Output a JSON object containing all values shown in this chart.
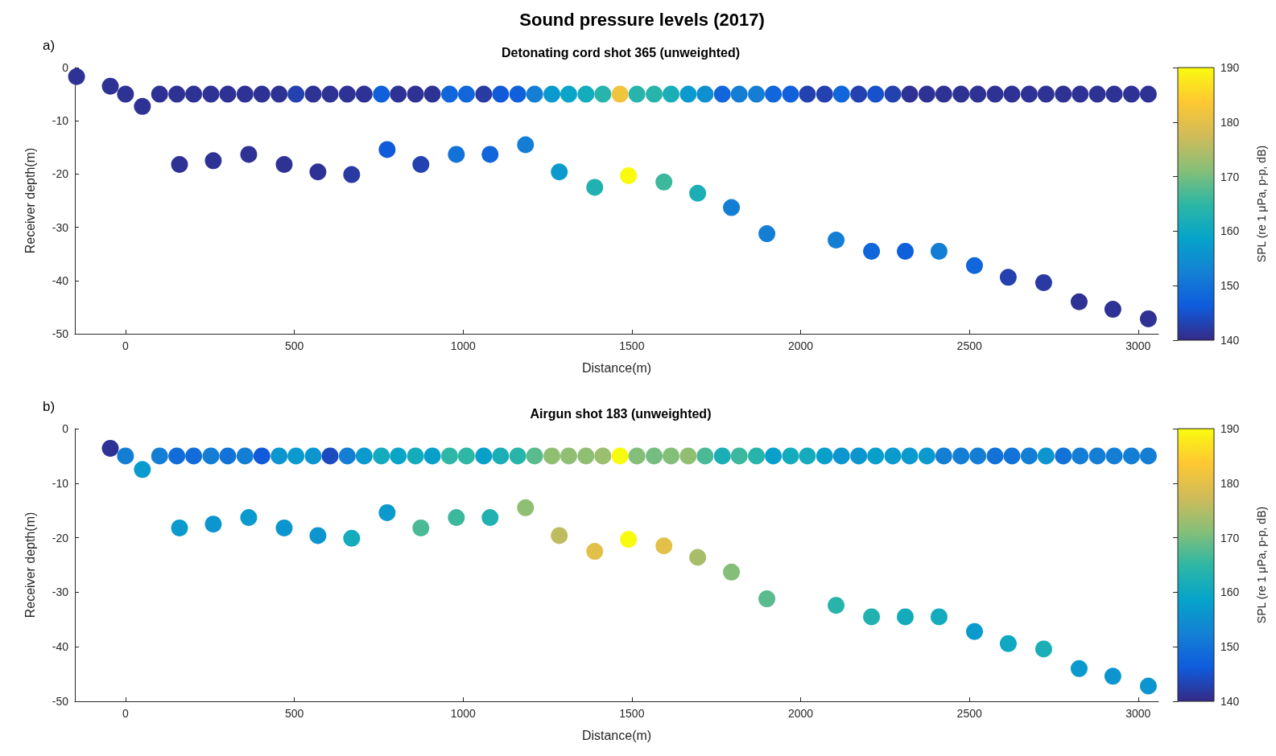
{
  "chart_data": [
    {
      "type": "scatter",
      "title": "Sound pressure levels (2017)",
      "subtitle": "Detonating cord shot 365 (unweighted)",
      "annotations": [
        "a)"
      ],
      "xlabel": "Distance(m)",
      "ylabel": "Receiver depth(m)",
      "clabel": "SPL (re 1 μPa, p-p, dB)",
      "xlim": [
        -150,
        3060
      ],
      "xticks": [
        0,
        500,
        1000,
        1500,
        2000,
        2500,
        3000
      ],
      "ylim": [
        -50,
        0
      ],
      "yticks": [
        -50,
        -40,
        -30,
        -20,
        -10,
        0
      ],
      "clim": [
        140,
        190
      ],
      "cticks": [
        140,
        150,
        160,
        170,
        180,
        190
      ],
      "grid": false,
      "marker": "circle",
      "x": [
        -145,
        -45,
        50,
        0,
        101,
        152,
        202,
        253,
        303,
        354,
        404,
        455,
        505,
        556,
        606,
        657,
        707,
        758,
        808,
        859,
        909,
        960,
        1010,
        1061,
        1111,
        1162,
        1212,
        1263,
        1313,
        1364,
        1414,
        1465,
        1515,
        1566,
        1616,
        1667,
        1717,
        1768,
        1818,
        1869,
        1919,
        1970,
        2020,
        2071,
        2121,
        2172,
        2222,
        2273,
        2323,
        2374,
        2424,
        2475,
        2525,
        2576,
        2626,
        2677,
        2727,
        2778,
        2828,
        2879,
        2929,
        2980,
        3030,
        160,
        260,
        365,
        470,
        570,
        670,
        775,
        875,
        980,
        1080,
        1185,
        1285,
        1390,
        1490,
        1595,
        1695,
        1795,
        1900,
        2105,
        2210,
        2310,
        2410,
        2515,
        2615,
        2720,
        2825,
        2925,
        3030
      ],
      "values": [
        -1.7,
        -3.5,
        -7.3,
        -5,
        -5,
        -5,
        -5,
        -5,
        -5,
        -5,
        -5,
        -5,
        -5,
        -5,
        -5,
        -5,
        -5,
        -5,
        -5,
        -5,
        -5,
        -5,
        -5,
        -5,
        -5,
        -5,
        -5,
        -5,
        -5,
        -5,
        -5,
        -5,
        -5,
        -5,
        -5,
        -5,
        -5,
        -5,
        -5,
        -5,
        -5,
        -5,
        -5,
        -5,
        -5,
        -5,
        -5,
        -5,
        -5,
        -5,
        -5,
        -5,
        -5,
        -5,
        -5,
        -5,
        -5,
        -5,
        -5,
        -5,
        -5,
        -5,
        -5,
        -18.2,
        -17.5,
        -16.3,
        -18.2,
        -19.6,
        -20.1,
        -15.4,
        -18.2,
        -16.3,
        -16.3,
        -14.5,
        -19.6,
        -22.5,
        -20.3,
        -21.5,
        -23.6,
        -26.3,
        -31.2,
        -32.4,
        -34.5,
        -34.5,
        -34.5,
        -37.2,
        -39.4,
        -40.4,
        -44,
        -45.4,
        -47.2
      ],
      "cvalues": [
        141,
        141,
        141,
        141,
        141,
        141,
        141,
        141,
        141,
        141,
        141,
        141,
        143,
        141,
        141,
        141,
        141,
        147,
        141,
        141,
        141,
        148,
        148,
        142,
        146,
        147,
        152,
        157,
        159,
        161,
        164,
        182,
        164,
        164,
        162,
        157,
        155,
        148,
        152,
        152,
        148,
        147,
        143,
        143,
        148,
        143,
        145,
        143,
        141,
        141,
        141,
        141,
        141,
        141,
        141,
        141,
        141,
        141,
        141,
        141,
        141,
        141,
        141,
        141,
        141,
        141,
        141,
        141,
        142,
        146,
        143,
        150,
        148,
        152,
        157,
        163,
        190,
        166,
        162,
        152,
        152,
        152,
        148,
        147,
        152,
        148,
        143,
        142,
        141,
        141,
        141
      ]
    },
    {
      "type": "scatter",
      "subtitle": "Airgun shot 183 (unweighted)",
      "annotations": [
        "b)"
      ],
      "xlabel": "Distance(m)",
      "ylabel": "Receiver depth(m)",
      "clabel": "SPL (re 1 μPa, p-p, dB)",
      "xlim": [
        -150,
        3060
      ],
      "xticks": [
        0,
        500,
        1000,
        1500,
        2000,
        2500,
        3000
      ],
      "ylim": [
        -50,
        0
      ],
      "yticks": [
        -50,
        -40,
        -30,
        -20,
        -10,
        0
      ],
      "clim": [
        140,
        190
      ],
      "cticks": [
        140,
        150,
        160,
        170,
        180,
        190
      ],
      "grid": false,
      "marker": "circle",
      "x": [
        -45,
        50,
        0,
        101,
        152,
        202,
        253,
        303,
        354,
        404,
        455,
        505,
        556,
        606,
        657,
        707,
        758,
        808,
        859,
        909,
        960,
        1010,
        1061,
        1111,
        1162,
        1212,
        1263,
        1313,
        1364,
        1414,
        1465,
        1515,
        1566,
        1616,
        1667,
        1717,
        1768,
        1818,
        1869,
        1919,
        1970,
        2020,
        2071,
        2121,
        2172,
        2222,
        2273,
        2323,
        2374,
        2424,
        2475,
        2525,
        2576,
        2626,
        2677,
        2727,
        2778,
        2828,
        2879,
        2929,
        2980,
        3030,
        160,
        260,
        365,
        470,
        570,
        670,
        775,
        875,
        980,
        1080,
        1185,
        1285,
        1390,
        1490,
        1595,
        1695,
        1795,
        1900,
        2105,
        2210,
        2310,
        2410,
        2515,
        2615,
        2720,
        2825,
        2925,
        3030
      ],
      "values": [
        -3.6,
        -7.5,
        -5,
        -5,
        -5,
        -5,
        -5,
        -5,
        -5,
        -5,
        -5,
        -5,
        -5,
        -5,
        -5,
        -5,
        -5,
        -5,
        -5,
        -5,
        -5,
        -5,
        -5,
        -5,
        -5,
        -5,
        -5,
        -5,
        -5,
        -5,
        -5,
        -5,
        -5,
        -5,
        -5,
        -5,
        -5,
        -5,
        -5,
        -5,
        -5,
        -5,
        -5,
        -5,
        -5,
        -5,
        -5,
        -5,
        -5,
        -5,
        -5,
        -5,
        -5,
        -5,
        -5,
        -5,
        -5,
        -5,
        -5,
        -5,
        -5,
        -5,
        -18.2,
        -17.5,
        -16.3,
        -18.2,
        -19.6,
        -20.1,
        -15.4,
        -18.2,
        -16.3,
        -16.3,
        -14.5,
        -19.6,
        -22.5,
        -20.3,
        -21.5,
        -23.6,
        -26.3,
        -31.2,
        -32.4,
        -34.5,
        -34.5,
        -34.5,
        -37.2,
        -39.4,
        -40.4,
        -44,
        -45.4,
        -47.2
      ],
      "cvalues": [
        141,
        157,
        152,
        152,
        149,
        149,
        152,
        150,
        152,
        146,
        156,
        157,
        156,
        144,
        152,
        157,
        161,
        159,
        161,
        158,
        165,
        165,
        158,
        162,
        164,
        168,
        172,
        172,
        172,
        173,
        190,
        171,
        170,
        171,
        172,
        167,
        162,
        166,
        164,
        158,
        161,
        161,
        158,
        156,
        156,
        158,
        157,
        157,
        157,
        152,
        152,
        152,
        150,
        150,
        152,
        156,
        150,
        152,
        152,
        152,
        152,
        152,
        157,
        156,
        157,
        156,
        156,
        161,
        157,
        167,
        166,
        163,
        172,
        176,
        180,
        190,
        180,
        174,
        171,
        168,
        164,
        163,
        161,
        161,
        157,
        160,
        162,
        157,
        156,
        156
      ]
    }
  ]
}
